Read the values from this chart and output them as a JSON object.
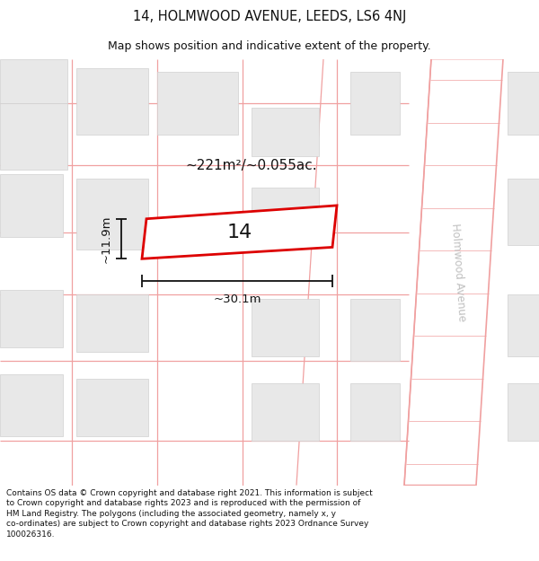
{
  "title": "14, HOLMWOOD AVENUE, LEEDS, LS6 4NJ",
  "subtitle": "Map shows position and indicative extent of the property.",
  "footer": "Contains OS data © Crown copyright and database right 2021. This information is subject\nto Crown copyright and database rights 2023 and is reproduced with the permission of\nHM Land Registry. The polygons (including the associated geometry, namely x, y\nco-ordinates) are subject to Crown copyright and database rights 2023 Ordnance Survey\n100026316.",
  "area_label": "~221m²/~0.055ac.",
  "width_label": "~30.1m",
  "height_label": "~11.9m",
  "property_number": "14",
  "street_name": "Holmwood Avenue",
  "bg_color": "#ffffff",
  "map_bg": "#ffffff",
  "road_color": "#f0a0a0",
  "building_color": "#e8e8e8",
  "building_edge": "#d0d0d0",
  "property_edge": "#dd0000",
  "property_fill": "#ffffff",
  "dim_color": "#111111",
  "street_label_color": "#c0c0c0"
}
